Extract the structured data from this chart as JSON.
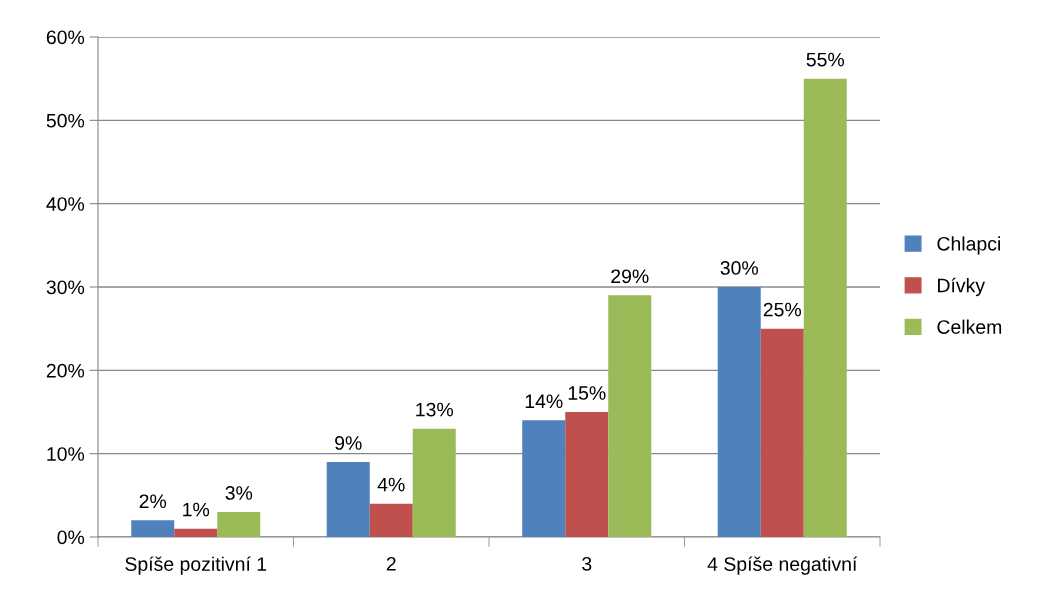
{
  "chart_data": {
    "type": "bar",
    "categories": [
      "Spíše pozitivní 1",
      "2",
      "3",
      "4 Spíše negativní"
    ],
    "series": [
      {
        "name": "Chlapci",
        "color": "#4f81bd",
        "values": [
          2,
          9,
          14,
          30
        ],
        "value_labels": [
          "2%",
          "9%",
          "14%",
          "30%"
        ]
      },
      {
        "name": "Dívky",
        "color": "#c0504d",
        "values": [
          1,
          4,
          15,
          25
        ],
        "value_labels": [
          "1%",
          "4%",
          "15%",
          "25%"
        ]
      },
      {
        "name": "Celkem",
        "color": "#9bbb59",
        "values": [
          3,
          13,
          29,
          55
        ],
        "value_labels": [
          "3%",
          "13%",
          "29%",
          "55%"
        ]
      }
    ],
    "ylim": [
      0,
      60
    ],
    "yticks": [
      {
        "value": 0,
        "label": "0%"
      },
      {
        "value": 10,
        "label": "10%"
      },
      {
        "value": 20,
        "label": "20%"
      },
      {
        "value": 30,
        "label": "30%"
      },
      {
        "value": 40,
        "label": "40%"
      },
      {
        "value": 50,
        "label": "50%"
      },
      {
        "value": 60,
        "label": "60%"
      }
    ],
    "grid": "y",
    "legend": "right"
  }
}
